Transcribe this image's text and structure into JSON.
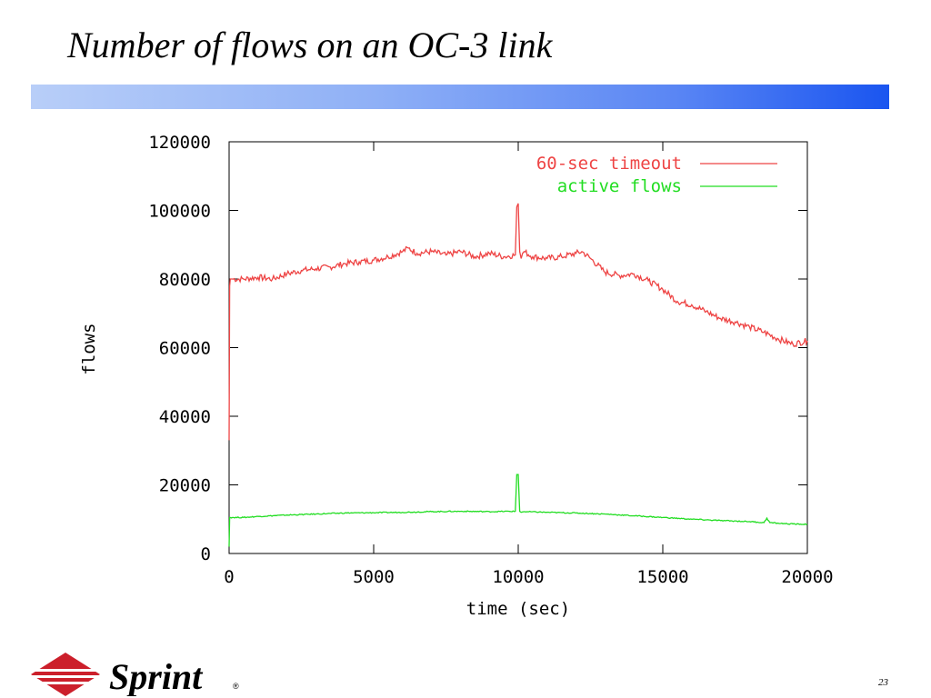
{
  "slide": {
    "title": "Number of flows on an OC-3 link",
    "page_number": "23",
    "logo_text": "Sprint",
    "logo_color": "#cc1f2b"
  },
  "colors": {
    "title_bar_start": "#b8cef8",
    "title_bar_end": "#1a55f0",
    "series_timeout": "#ee4444",
    "series_active": "#22dd22"
  },
  "chart_data": {
    "type": "line",
    "xlabel": "time (sec)",
    "ylabel": "flows",
    "xlim": [
      0,
      20000
    ],
    "ylim": [
      0,
      120000
    ],
    "xticks": [
      0,
      5000,
      10000,
      15000,
      20000
    ],
    "yticks": [
      0,
      20000,
      40000,
      60000,
      80000,
      100000,
      120000
    ],
    "grid": false,
    "legend": "top-right",
    "series": [
      {
        "name": "60-sec timeout",
        "color": "#ee4444",
        "x": [
          0,
          20,
          40,
          100,
          500,
          1000,
          1500,
          2000,
          2500,
          3000,
          3500,
          4000,
          4500,
          5000,
          5500,
          6000,
          6200,
          6500,
          7000,
          7500,
          8000,
          8500,
          9000,
          9500,
          9900,
          9950,
          10000,
          10050,
          10100,
          10150,
          10200,
          10500,
          11000,
          11500,
          12000,
          12200,
          12500,
          13000,
          13500,
          14000,
          14500,
          15000,
          15500,
          16000,
          16500,
          17000,
          17500,
          18000,
          18500,
          19000,
          19500,
          20000
        ],
        "y": [
          33000,
          78000,
          80000,
          80000,
          80000,
          80500,
          80000,
          81500,
          82500,
          83000,
          83500,
          84500,
          85000,
          85500,
          86500,
          88000,
          89000,
          87500,
          88000,
          87000,
          88000,
          86500,
          87500,
          86500,
          87000,
          101000,
          102000,
          88000,
          86000,
          87500,
          88000,
          86500,
          86000,
          86500,
          87500,
          88000,
          86000,
          82000,
          81000,
          81500,
          79500,
          77000,
          73500,
          72500,
          70500,
          68500,
          67500,
          66000,
          64500,
          62500,
          61000,
          62000
        ]
      },
      {
        "name": "active flows",
        "color": "#22dd22",
        "x": [
          0,
          20,
          40,
          500,
          1000,
          2000,
          3000,
          4000,
          5000,
          6000,
          7000,
          8000,
          9000,
          9900,
          9950,
          10000,
          10050,
          10100,
          10200,
          11000,
          12000,
          13000,
          14000,
          15000,
          16000,
          17000,
          18000,
          18500,
          18600,
          18700,
          19000,
          19500,
          20000
        ],
        "y": [
          2000,
          10500,
          10500,
          10500,
          10800,
          11200,
          11500,
          11800,
          11900,
          12000,
          12200,
          12300,
          12200,
          12300,
          23000,
          23000,
          12300,
          12000,
          12200,
          12000,
          11800,
          11500,
          11000,
          10500,
          10000,
          9600,
          9300,
          9000,
          10300,
          9000,
          8800,
          8600,
          8500
        ]
      }
    ]
  }
}
